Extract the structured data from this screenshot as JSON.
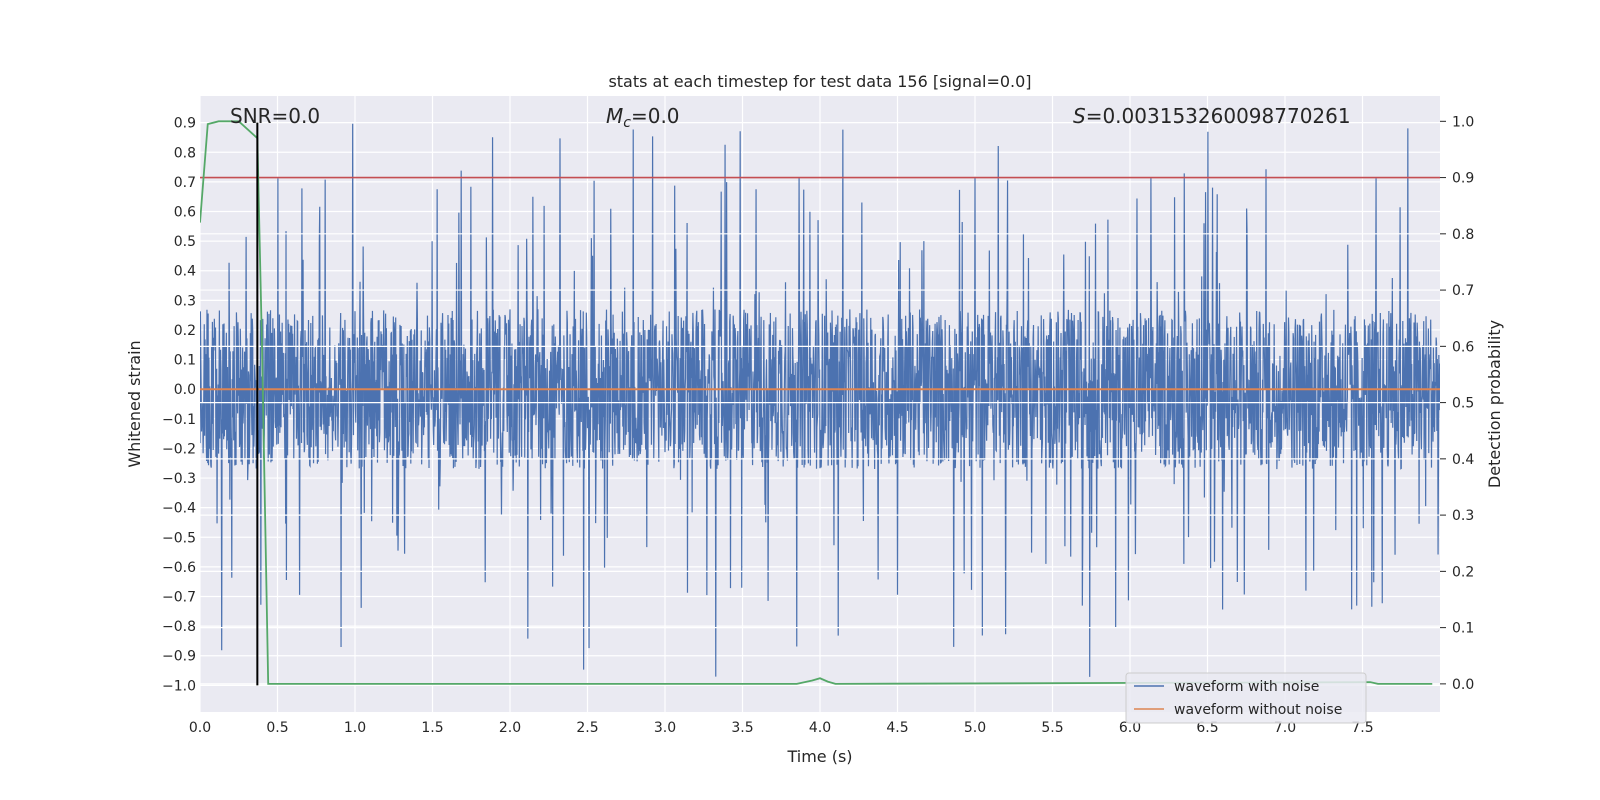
{
  "chart_data": {
    "type": "line",
    "title": "stats at each timestep for test data 156 [signal=0.0]",
    "xlabel": "Time (s)",
    "ylabel_left": "Whitened strain",
    "ylabel_right": "Detection probability",
    "xlim": [
      0.0,
      8.0
    ],
    "ylim_left": [
      -1.09,
      0.99
    ],
    "ylim_right": [
      -0.05,
      1.045
    ],
    "x_ticks": [
      "0.0",
      "0.5",
      "1.0",
      "1.5",
      "2.0",
      "2.5",
      "3.0",
      "3.5",
      "4.0",
      "4.5",
      "5.0",
      "5.5",
      "6.0",
      "6.5",
      "7.0",
      "7.5"
    ],
    "x_tick_values": [
      0.0,
      0.5,
      1.0,
      1.5,
      2.0,
      2.5,
      3.0,
      3.5,
      4.0,
      4.5,
      5.0,
      5.5,
      6.0,
      6.5,
      7.0,
      7.5
    ],
    "y_left_ticks": [
      "0.9",
      "0.8",
      "0.7",
      "0.6",
      "0.5",
      "0.4",
      "0.3",
      "0.2",
      "0.1",
      "0.0",
      "−0.1",
      "−0.2",
      "−0.3",
      "−0.4",
      "−0.5",
      "−0.6",
      "−0.7",
      "−0.8",
      "−0.9",
      "−1.0"
    ],
    "y_left_tick_values": [
      0.9,
      0.8,
      0.7,
      0.6,
      0.5,
      0.4,
      0.3,
      0.2,
      0.1,
      0.0,
      -0.1,
      -0.2,
      -0.3,
      -0.4,
      -0.5,
      -0.6,
      -0.7,
      -0.8,
      -0.9,
      -1.0
    ],
    "y_right_ticks": [
      "1.0",
      "0.9",
      "0.8",
      "0.7",
      "0.6",
      "0.5",
      "0.4",
      "0.3",
      "0.2",
      "0.1",
      "0.0"
    ],
    "y_right_tick_values": [
      1.0,
      0.9,
      0.8,
      0.7,
      0.6,
      0.5,
      0.4,
      0.3,
      0.2,
      0.1,
      0.0
    ],
    "annotations": {
      "snr": "SNR=0.0",
      "mc_symbol": "M",
      "mc_sub": "c",
      "mc_value": "=0.0",
      "s_symbol": "S",
      "s_value": "=0.003153260098770261"
    },
    "series": [
      {
        "name": "waveform with noise",
        "color": "#4c72b0",
        "kind": "noise",
        "axis": "left",
        "band": [
          -0.3,
          0.3
        ],
        "peak_max": 0.9,
        "trough_min": -1.0
      },
      {
        "name": "waveform without noise",
        "color": "#dd8452",
        "axis": "left",
        "x": [
          0.0,
          8.0
        ],
        "y": [
          0.0,
          0.0
        ]
      },
      {
        "name": "detection probability",
        "color": "#55a868",
        "axis": "right",
        "x": [
          0.0,
          0.05,
          0.12,
          0.25,
          0.33,
          0.37,
          0.4,
          0.44,
          3.85,
          3.95,
          4.0,
          4.05,
          4.1,
          7.5,
          7.55,
          7.6,
          7.95
        ],
        "y": [
          0.82,
          0.995,
          1.0,
          1.0,
          0.98,
          0.97,
          0.6,
          0.0,
          0.0,
          0.006,
          0.01,
          0.004,
          0.0,
          0.003,
          0.003,
          0.0,
          0.0
        ]
      },
      {
        "name": "detection threshold",
        "color": "#c44e52",
        "axis": "right",
        "x": [
          0.0,
          8.0
        ],
        "y": [
          0.9,
          0.9
        ]
      },
      {
        "name": "trigger time marker",
        "color": "#000000",
        "axis": "left",
        "x": [
          0.37,
          0.37
        ],
        "y": [
          -1.0,
          0.9
        ]
      }
    ],
    "right_gridlines": [
      0.9,
      0.8,
      0.7,
      0.6,
      0.5,
      0.4,
      0.3,
      0.2,
      0.1,
      0.0
    ],
    "legend": {
      "placement": "lower-right",
      "entries": [
        {
          "label": "waveform with noise",
          "color": "#4c72b0"
        },
        {
          "label": "waveform without noise",
          "color": "#dd8452"
        }
      ]
    }
  }
}
